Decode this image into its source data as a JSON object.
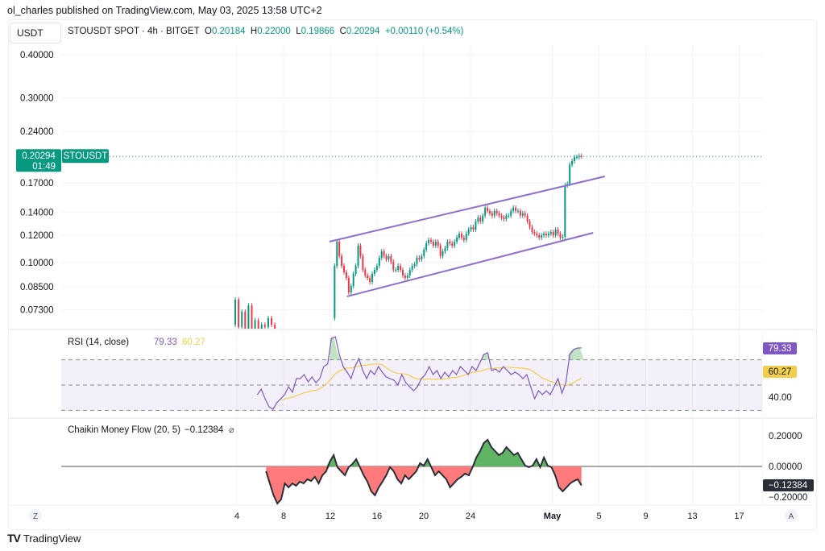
{
  "publish_line": "ol_charles published on TradingView.com, May 03, 2025 13:58 UTC+2",
  "symbol_button": "USDT",
  "legend": {
    "title": "STOUSDT SPOT · 4h · BITGET",
    "o_label": "O",
    "o": "0.20184",
    "h_label": "H",
    "h": "0.22000",
    "l_label": "L",
    "l": "0.19866",
    "c_label": "C",
    "c": "0.20294",
    "change": "+0.00110 (+0.54%)"
  },
  "price_tag": {
    "price": "0.20294",
    "countdown": "01:49",
    "symbol": "STOUSDT"
  },
  "footer": {
    "logo_text": "TradingView"
  },
  "colors": {
    "up": "#089981",
    "down": "#f23645",
    "channel": "#8e6fd0",
    "rsi": "#7e57c2",
    "rsi_ma": "#f2cf4a",
    "cmf_pos": "#5fb563",
    "cmf_neg": "#ff7b7b"
  },
  "chart_data": [
    {
      "type": "candlestick",
      "scale": "log",
      "interval": "4h",
      "price_ticks": [
        "0.40000",
        "0.30000",
        "0.24000",
        "0.17000",
        "0.14000",
        "0.12000",
        "0.10000",
        "0.08500",
        "0.07300"
      ],
      "date_ticks": [
        {
          "date": "2025-04-04",
          "label": "4"
        },
        {
          "date": "2025-04-08",
          "label": "8"
        },
        {
          "date": "2025-04-12",
          "label": "12"
        },
        {
          "date": "2025-04-16",
          "label": "16"
        },
        {
          "date": "2025-04-20",
          "label": "20"
        },
        {
          "date": "2025-04-24",
          "label": "24"
        },
        {
          "date": "2025-05-01",
          "label": "May"
        },
        {
          "date": "2025-05-05",
          "label": "5"
        },
        {
          "date": "2025-05-09",
          "label": "9"
        },
        {
          "date": "2025-05-13",
          "label": "13"
        },
        {
          "date": "2025-05-17",
          "label": "17"
        }
      ],
      "last_price": 0.20294,
      "early_bars": {
        "from": "2025-04-03T14:00",
        "to": "2025-04-07T06:00",
        "closes": [
          0.066,
          0.078,
          0.065,
          0.072,
          0.063,
          0.075,
          0.064,
          0.068,
          0.063,
          0.066,
          0.065,
          0.069,
          0.066,
          0.064
        ]
      },
      "bars": {
        "from": "2025-04-12T04:00",
        "to": "2025-05-03T12:00",
        "closes": [
          0.069,
          0.0978,
          0.1149,
          0.1044,
          0.0978,
          0.0937,
          0.0902,
          0.0819,
          0.0855,
          0.0927,
          0.0978,
          0.1119,
          0.1044,
          0.0952,
          0.0917,
          0.0902,
          0.0878,
          0.0927,
          0.0952,
          0.0978,
          0.1032,
          0.1077,
          0.1044,
          0.1021,
          0.1044,
          0.1005,
          0.0952,
          0.0952,
          0.0978,
          0.0952,
          0.0917,
          0.0902,
          0.0917,
          0.0952,
          0.0978,
          0.0989,
          0.1032,
          0.1021,
          0.1044,
          0.1089,
          0.1137,
          0.1162,
          0.1149,
          0.1119,
          0.1149,
          0.1119,
          0.1044,
          0.1077,
          0.1101,
          0.1149,
          0.1137,
          0.1119,
          0.1149,
          0.1181,
          0.1212,
          0.1181,
          0.1162,
          0.1212,
          0.1246,
          0.1266,
          0.1246,
          0.1315,
          0.135,
          0.1315,
          0.1367,
          0.1441,
          0.1411,
          0.1389,
          0.1367,
          0.1411,
          0.1389,
          0.1367,
          0.135,
          0.1336,
          0.1367,
          0.1367,
          0.1411,
          0.1441,
          0.1411,
          0.1411,
          0.1367,
          0.1389,
          0.1367,
          0.1315,
          0.1266,
          0.1226,
          0.1212,
          0.1199,
          0.1181,
          0.1199,
          0.1212,
          0.1199,
          0.1212,
          0.1226,
          0.1199,
          0.1246,
          0.1212,
          0.1181,
          0.1187,
          0.1674,
          0.169,
          0.192,
          0.1967,
          0.202,
          0.202,
          0.2036,
          0.20294
        ]
      },
      "channel": [
        {
          "from": {
            "date": "2025-04-11T22:00",
            "price": 0.1149
          },
          "to": {
            "date": "2025-05-05T12:00",
            "price": 0.1776
          }
        },
        {
          "from": {
            "date": "2025-04-13T10:00",
            "price": 0.0797
          },
          "to": {
            "date": "2025-05-04T12:00",
            "price": 0.1219
          }
        }
      ]
    },
    {
      "type": "line",
      "title": "RSI (14, close)",
      "rsi_value": "79.33",
      "ma_value": "60.27",
      "axis_label": "40.00",
      "bands": [
        70,
        50,
        30
      ],
      "from": "2025-04-05T18:00",
      "to": "2025-05-03T12:00",
      "values": [
        42.4,
        46.8,
        39.2,
        32.8,
        30.9,
        36,
        39.2,
        42.4,
        48.7,
        44.3,
        55.1,
        55.1,
        58.3,
        52.5,
        56.4,
        51.9,
        55.1,
        64.6,
        66.6,
        86.9,
        88.2,
        74.2,
        64.6,
        60.2,
        55.1,
        64.6,
        71,
        61.5,
        55.1,
        61.5,
        58.3,
        64.6,
        60.2,
        56.4,
        55.1,
        53.8,
        50,
        58.3,
        51.9,
        48.7,
        45.5,
        48.7,
        55.1,
        58.3,
        64.6,
        58.3,
        61.5,
        55.1,
        60.2,
        56.4,
        61.5,
        58.3,
        64.6,
        61.5,
        58.3,
        64.6,
        61.5,
        67.8,
        74.2,
        75.5,
        61.5,
        62.7,
        60.2,
        64.6,
        61.5,
        58.3,
        60.2,
        58.3,
        55.1,
        58.3,
        48.7,
        39.2,
        45.5,
        42.4,
        45.5,
        42.4,
        48.7,
        55.1,
        43.6,
        51.9,
        74.2,
        78,
        79.3,
        79.33
      ]
    },
    {
      "type": "area",
      "title": "Chaikin Money Flow (20, 5)",
      "value": "−0.12384",
      "ticks": [
        "0.20000",
        "0.00000",
        "−0.20000"
      ],
      "from": "2025-04-06T12:00",
      "to": "2025-05-03T12:00",
      "values": [
        -0.032,
        -0.111,
        -0.189,
        -0.242,
        -0.216,
        -0.111,
        -0.137,
        -0.111,
        -0.126,
        -0.1,
        -0.111,
        -0.084,
        -0.095,
        -0.068,
        -0.111,
        -0.058,
        -0.032,
        0.032,
        0.074,
        -0.005,
        -0.032,
        -0.058,
        -0.005,
        0.016,
        0.047,
        -0.005,
        -0.058,
        -0.1,
        -0.163,
        -0.189,
        -0.137,
        -0.1,
        -0.058,
        -0.005,
        -0.032,
        -0.084,
        -0.111,
        -0.058,
        -0.084,
        -0.058,
        -0.032,
        0.021,
        0.005,
        0.047,
        -0.005,
        -0.058,
        -0.032,
        -0.058,
        -0.084,
        -0.137,
        -0.111,
        -0.084,
        -0.068,
        -0.047,
        -0.058,
        -0.005,
        0.058,
        0.1,
        0.153,
        0.174,
        0.126,
        0.1,
        0.074,
        0.089,
        0.126,
        0.1,
        0.074,
        0.089,
        0.047,
        0.005,
        -0.005,
        0.005,
        0.047,
        -0.005,
        0.058,
        0.005,
        -0.005,
        -0.058,
        -0.137,
        -0.163,
        -0.137,
        -0.111,
        -0.095,
        -0.084,
        -0.124
      ]
    }
  ],
  "axis_buttons": {
    "left": "Z",
    "right": "A"
  }
}
